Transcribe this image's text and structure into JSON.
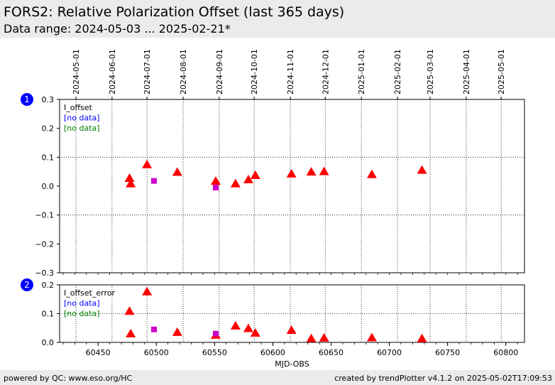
{
  "header": {
    "title": "FORS2: Relative Polarization Offset (last 365 days)",
    "subtitle": "Data range: 2024-05-03 ... 2025-02-21*"
  },
  "footer": {
    "left": "powered by QC: www.eso.org/HC",
    "right": "created by trendPlotter v4.1.2 on 2025-05-02T17:09:53"
  },
  "colors": {
    "red": "#ff0000",
    "magenta": "#cc00cc",
    "blue": "#0000ff",
    "green": "#008000",
    "badge": "#0000ff"
  },
  "chart_data": [
    {
      "type": "scatter",
      "badge": "1",
      "xlabel": "",
      "xlim": [
        60417,
        60816
      ],
      "ylim": [
        -0.3,
        0.3
      ],
      "yticks": [
        "0.3",
        "0.2",
        "0.1",
        "0.0",
        "−0.1",
        "−0.2",
        "−0.3"
      ],
      "ytick_values": [
        0.3,
        0.2,
        0.1,
        0.0,
        -0.1,
        -0.2,
        -0.3
      ],
      "grid": "dotted at ±0.1 and at date ticks",
      "legend": [
        "I_offset",
        "[no data]",
        "[no data]"
      ],
      "series": [
        {
          "marker": "triangle",
          "color": "red",
          "x": [
            60477,
            60478,
            60492,
            60518,
            60551,
            60568,
            60579,
            60585,
            60616,
            60633,
            60644,
            60685,
            60728
          ],
          "y": [
            0.027,
            0.008,
            0.074,
            0.048,
            0.017,
            0.008,
            0.022,
            0.037,
            0.042,
            0.049,
            0.05,
            0.04,
            0.055
          ]
        },
        {
          "marker": "square",
          "color": "magenta",
          "x": [
            60498,
            60551
          ],
          "y": [
            0.018,
            -0.005
          ]
        }
      ]
    },
    {
      "type": "scatter",
      "badge": "2",
      "xlabel": "MJD-OBS",
      "xlim": [
        60417,
        60816
      ],
      "ylim": [
        0.0,
        0.2
      ],
      "yticks": [
        "0.2",
        "0.1",
        "0.0"
      ],
      "ytick_values": [
        0.2,
        0.1,
        0.0
      ],
      "grid": "dotted at 0.1 and at date ticks",
      "legend": [
        "I_offset_error",
        "[no data]",
        "[no data]"
      ],
      "xticks": [
        "60450",
        "60500",
        "60550",
        "60600",
        "60650",
        "60700",
        "60750",
        "60800"
      ],
      "xtick_values": [
        60450,
        60500,
        60550,
        60600,
        60650,
        60700,
        60750,
        60800
      ],
      "series": [
        {
          "marker": "triangle",
          "color": "red",
          "x": [
            60477,
            60478,
            60492,
            60518,
            60551,
            60568,
            60579,
            60585,
            60616,
            60633,
            60644,
            60685,
            60728
          ],
          "y": [
            0.108,
            0.03,
            0.176,
            0.035,
            0.025,
            0.057,
            0.048,
            0.032,
            0.042,
            0.013,
            0.015,
            0.016,
            0.013
          ]
        },
        {
          "marker": "square",
          "color": "magenta",
          "x": [
            60498,
            60551
          ],
          "y": [
            0.045,
            0.03
          ]
        }
      ]
    }
  ],
  "date_axis": {
    "labels": [
      "2024-05-01",
      "2024-06-01",
      "2024-07-01",
      "2024-08-01",
      "2024-09-01",
      "2024-10-01",
      "2024-11-01",
      "2024-12-01",
      "2025-01-01",
      "2025-02-01",
      "2025-03-01",
      "2025-04-01",
      "2025-05-01"
    ],
    "mjd": [
      60431,
      60462,
      60492,
      60523,
      60554,
      60584,
      60615,
      60645,
      60676,
      60707,
      60735,
      60766,
      60796
    ]
  }
}
